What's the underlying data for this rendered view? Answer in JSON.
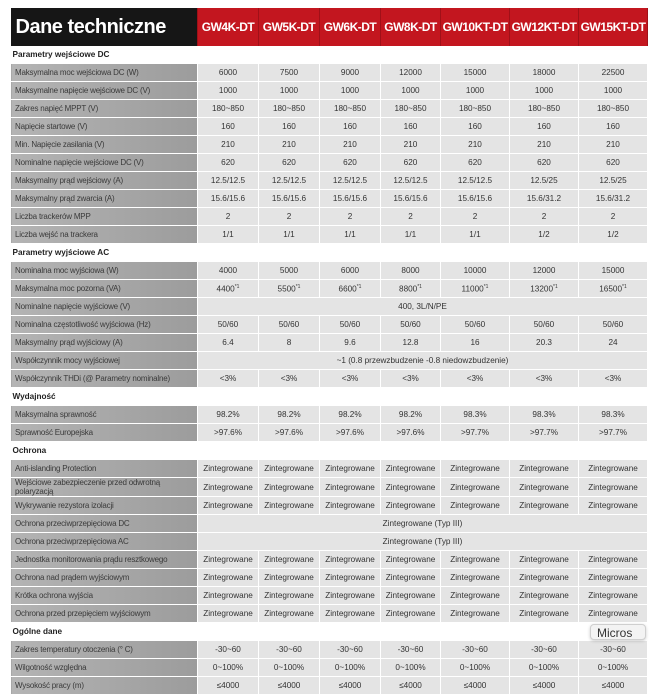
{
  "header": {
    "title": "Dane techniczne",
    "models": [
      "GW4K-DT",
      "GW5K-DT",
      "GW6K-DT",
      "GW8K-DT",
      "GW10KT-DT",
      "GW12KT-DT",
      "GW15KT-DT"
    ]
  },
  "colors": {
    "header_title_bg": "#161616",
    "header_model_bg": "#c3161f",
    "label_bg": "#a5a5a5",
    "value_bg": "#e4e4e4"
  },
  "sections": [
    {
      "title": "Parametry wejściowe DC",
      "rows": [
        {
          "label": "Maksymalna moc wejściowa DC (W)",
          "values": [
            "6000",
            "7500",
            "9000",
            "12000",
            "15000",
            "18000",
            "22500"
          ]
        },
        {
          "label": "Maksymalne napięcie wejściowe DC (V)",
          "values": [
            "1000",
            "1000",
            "1000",
            "1000",
            "1000",
            "1000",
            "1000"
          ]
        },
        {
          "label": "Zakres napięć MPPT (V)",
          "values": [
            "180~850",
            "180~850",
            "180~850",
            "180~850",
            "180~850",
            "180~850",
            "180~850"
          ]
        },
        {
          "label": "Napięcie startowe (V)",
          "values": [
            "160",
            "160",
            "160",
            "160",
            "160",
            "160",
            "160"
          ]
        },
        {
          "label": "Min. Napięcie zasilania (V)",
          "values": [
            "210",
            "210",
            "210",
            "210",
            "210",
            "210",
            "210"
          ]
        },
        {
          "label": "Nominalne napięcie wejściowe DC (V)",
          "values": [
            "620",
            "620",
            "620",
            "620",
            "620",
            "620",
            "620"
          ]
        },
        {
          "label": "Maksymalny prąd wejściowy (A)",
          "values": [
            "12.5/12.5",
            "12.5/12.5",
            "12.5/12.5",
            "12.5/12.5",
            "12.5/12.5",
            "12.5/25",
            "12.5/25"
          ]
        },
        {
          "label": "Maksymalny prąd zwarcia (A)",
          "values": [
            "15.6/15.6",
            "15.6/15.6",
            "15.6/15.6",
            "15.6/15.6",
            "15.6/15.6",
            "15.6/31.2",
            "15.6/31.2"
          ]
        },
        {
          "label": "Liczba trackerów MPP",
          "values": [
            "2",
            "2",
            "2",
            "2",
            "2",
            "2",
            "2"
          ]
        },
        {
          "label": "Liczba wejść na trackera",
          "values": [
            "1/1",
            "1/1",
            "1/1",
            "1/1",
            "1/1",
            "1/2",
            "1/2"
          ]
        }
      ]
    },
    {
      "title": "Parametry wyjściowe AC",
      "rows": [
        {
          "label": "Nominalna moc wyjściowa (W)",
          "values": [
            "4000",
            "5000",
            "6000",
            "8000",
            "10000",
            "12000",
            "15000"
          ]
        },
        {
          "label": "Maksymalna moc pozorna (VA)",
          "values": [
            "4400",
            "5500",
            "6600",
            "8800",
            "11000",
            "13200",
            "16500"
          ],
          "note": "*1"
        },
        {
          "label": "Nominalne napięcie wyjściowe (V)",
          "span": "400, 3L/N/PE"
        },
        {
          "label": "Nominalna częstotliwość wyjściowa (Hz)",
          "values": [
            "50/60",
            "50/60",
            "50/60",
            "50/60",
            "50/60",
            "50/60",
            "50/60"
          ]
        },
        {
          "label": "Maksymalny prąd wyjściowy (A)",
          "values": [
            "6.4",
            "8",
            "9.6",
            "12.8",
            "16",
            "20.3",
            "24"
          ]
        },
        {
          "label": "Współczynnik mocy wyjściowej",
          "span": "~1 (0.8 przewzbudzenie -0.8 niedowzbudzenie)"
        },
        {
          "label": "Współczynnik THDi (@ Parametry nominalne)",
          "values": [
            "<3%",
            "<3%",
            "<3%",
            "<3%",
            "<3%",
            "<3%",
            "<3%"
          ]
        }
      ]
    },
    {
      "title": "Wydajność",
      "rows": [
        {
          "label": "Maksymalna sprawność",
          "values": [
            "98.2%",
            "98.2%",
            "98.2%",
            "98.2%",
            "98.3%",
            "98.3%",
            "98.3%"
          ]
        },
        {
          "label": "Sprawność Europejska",
          "values": [
            ">97.6%",
            ">97.6%",
            ">97.6%",
            ">97.6%",
            ">97.7%",
            ">97.7%",
            ">97.7%"
          ]
        }
      ]
    },
    {
      "title": "Ochrona",
      "rows": [
        {
          "label": "Anti-islanding Protection",
          "values": [
            "Zintegrowane",
            "Zintegrowane",
            "Zintegrowane",
            "Zintegrowane",
            "Zintegrowane",
            "Zintegrowane",
            "Zintegrowane"
          ]
        },
        {
          "label": "Wejściowe zabezpieczenie przed odwrotną polaryzacją",
          "values": [
            "Zintegrowane",
            "Zintegrowane",
            "Zintegrowane",
            "Zintegrowane",
            "Zintegrowane",
            "Zintegrowane",
            "Zintegrowane"
          ]
        },
        {
          "label": "Wykrywanie rezystora izolacji",
          "values": [
            "Zintegrowane",
            "Zintegrowane",
            "Zintegrowane",
            "Zintegrowane",
            "Zintegrowane",
            "Zintegrowane",
            "Zintegrowane"
          ]
        },
        {
          "label": "Ochrona przeciwprzepięciowa DC",
          "span": "Zintegrowane (Typ III)"
        },
        {
          "label": "Ochrona przeciwprzepięciowa AC",
          "span": "Zintegrowane (Typ III)"
        },
        {
          "label": "Jednostka monitorowania prądu resztkowego",
          "values": [
            "Zintegrowane",
            "Zintegrowane",
            "Zintegrowane",
            "Zintegrowane",
            "Zintegrowane",
            "Zintegrowane",
            "Zintegrowane"
          ]
        },
        {
          "label": "Ochrona nad prądem wyjściowym",
          "values": [
            "Zintegrowane",
            "Zintegrowane",
            "Zintegrowane",
            "Zintegrowane",
            "Zintegrowane",
            "Zintegrowane",
            "Zintegrowane"
          ]
        },
        {
          "label": "Krótka ochrona wyjścia",
          "values": [
            "Zintegrowane",
            "Zintegrowane",
            "Zintegrowane",
            "Zintegrowane",
            "Zintegrowane",
            "Zintegrowane",
            "Zintegrowane"
          ]
        },
        {
          "label": "Ochrona przed przepięciem wyjściowym",
          "values": [
            "Zintegrowane",
            "Zintegrowane",
            "Zintegrowane",
            "Zintegrowane",
            "Zintegrowane",
            "Zintegrowane",
            "Zintegrowane"
          ]
        }
      ]
    },
    {
      "title": "Ogólne dane",
      "rows": [
        {
          "label": "Zakres temperatury otoczenia (° C)",
          "values": [
            "-30~60",
            "-30~60",
            "-30~60",
            "-30~60",
            "-30~60",
            "-30~60",
            "-30~60"
          ]
        },
        {
          "label": "Wilgotność względna",
          "values": [
            "0~100%",
            "0~100%",
            "0~100%",
            "0~100%",
            "0~100%",
            "0~100%",
            "0~100%"
          ]
        },
        {
          "label": "Wysokość pracy (m)",
          "values": [
            "≤4000",
            "≤4000",
            "≤4000",
            "≤4000",
            "≤4000",
            "≤4000",
            "≤4000"
          ]
        }
      ]
    }
  ],
  "toast": {
    "text": "Micros"
  }
}
